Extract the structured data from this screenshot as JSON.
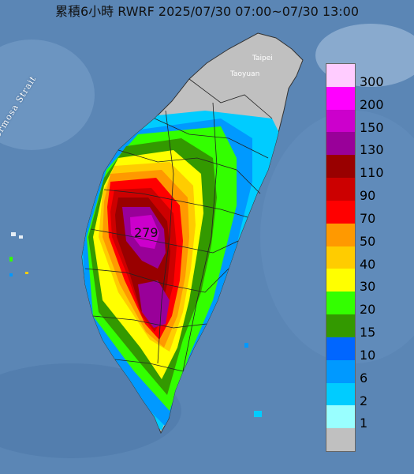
{
  "title": "累積6小時 RWRF 2025/07/30 07:00~07/30 13:00",
  "map": {
    "sea_label": "Formosa Strait",
    "city_labels": [
      "Taipei",
      "Taoyuan"
    ],
    "max_value_label": "279"
  },
  "legend": {
    "items": [
      {
        "label": "300",
        "color": "#ffccff"
      },
      {
        "label": "200",
        "color": "#ff00ff"
      },
      {
        "label": "150",
        "color": "#cc00cc"
      },
      {
        "label": "130",
        "color": "#990099"
      },
      {
        "label": "110",
        "color": "#990000"
      },
      {
        "label": "90",
        "color": "#cc0000"
      },
      {
        "label": "70",
        "color": "#ff0000"
      },
      {
        "label": "50",
        "color": "#ff9900"
      },
      {
        "label": "40",
        "color": "#ffcc00"
      },
      {
        "label": "30",
        "color": "#ffff00"
      },
      {
        "label": "20",
        "color": "#33ff00"
      },
      {
        "label": "15",
        "color": "#339900"
      },
      {
        "label": "10",
        "color": "#0066ff"
      },
      {
        "label": "6",
        "color": "#0099ff"
      },
      {
        "label": "2",
        "color": "#00ccff"
      },
      {
        "label": "1",
        "color": "#99ffff"
      },
      {
        "label": "",
        "color": "#c0c0c0"
      }
    ]
  }
}
